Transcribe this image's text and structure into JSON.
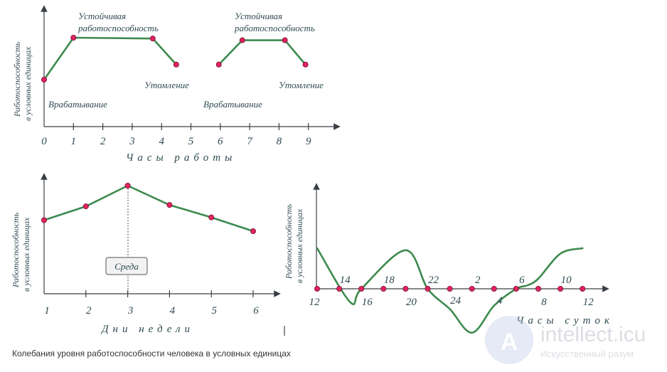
{
  "caption": "Колебания уровня работоспособности человека в условных единицах",
  "watermark": {
    "brand": "intellect.icu",
    "tagline": "Искусственный разум"
  },
  "chart_data": [
    {
      "type": "line",
      "title": "",
      "xlabel": "Часы работы",
      "ylabel": [
        "Работоспособность",
        "в условных единицах"
      ],
      "x_ticks": [
        "0",
        "1",
        "2",
        "3",
        "4",
        "5",
        "6",
        "7",
        "8",
        "9"
      ],
      "xlim": [
        0,
        10
      ],
      "series": [
        {
          "x": [
            0,
            1,
            3.7,
            4.5
          ],
          "y": [
            0.0,
            1.0,
            0.98,
            0.36
          ]
        },
        {
          "x": [
            5.95,
            6.75,
            8.2,
            8.9
          ],
          "y": [
            0.36,
            0.94,
            0.94,
            0.36
          ]
        }
      ],
      "annotations": [
        "Устойчивая",
        "работоспособность",
        "Утомление",
        "Врабатывание",
        "Устойчивая",
        "работоспособность",
        "Утомление",
        "Врабатывание"
      ]
    },
    {
      "type": "line",
      "title": "",
      "xlabel": "Дни недели",
      "ylabel": [
        "Работоспособность",
        "в условных единицах"
      ],
      "x_ticks": [
        "1",
        "2",
        "3",
        "4",
        "5",
        "6"
      ],
      "series": [
        {
          "x": [
            1,
            2,
            3,
            4,
            5,
            6
          ],
          "y": [
            0.5,
            0.7,
            1.0,
            0.72,
            0.54,
            0.34
          ]
        }
      ],
      "annotations": [
        "Среда"
      ]
    },
    {
      "type": "line",
      "title": "",
      "xlabel": "Часы суток",
      "ylabel": [
        "Работоспособность",
        "в условных единицах"
      ],
      "x_ticks": [
        "12",
        "14",
        "16",
        "18",
        "20",
        "22",
        "24",
        "2",
        "4",
        "6",
        "8",
        "10",
        "12"
      ],
      "series": [
        {
          "x": [
            0,
            1.5,
            2,
            4,
            5,
            6,
            7,
            8,
            9,
            9.5,
            10,
            11,
            12
          ],
          "y": [
            0.6,
            -0.2,
            0,
            0.57,
            0,
            -0.3,
            -0.65,
            -0.25,
            0,
            0.05,
            0.15,
            0.52,
            0.6
          ]
        }
      ]
    }
  ]
}
